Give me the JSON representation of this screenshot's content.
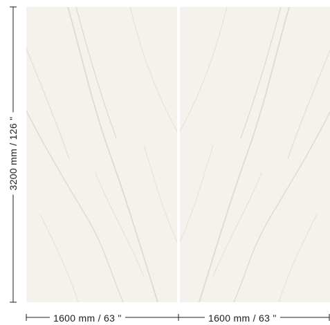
{
  "dimensions": {
    "height_label": "3200 mm  /  126 \"",
    "width_labels": [
      "1600 mm  /  63 \"",
      "1600 mm  /  63 \""
    ]
  },
  "colors": {
    "slab": "#f5f2ed",
    "vein": "#c9c1b4",
    "vein_dark": "#a89e8e",
    "line": "#1c1c1c",
    "background": "#ffffff"
  }
}
